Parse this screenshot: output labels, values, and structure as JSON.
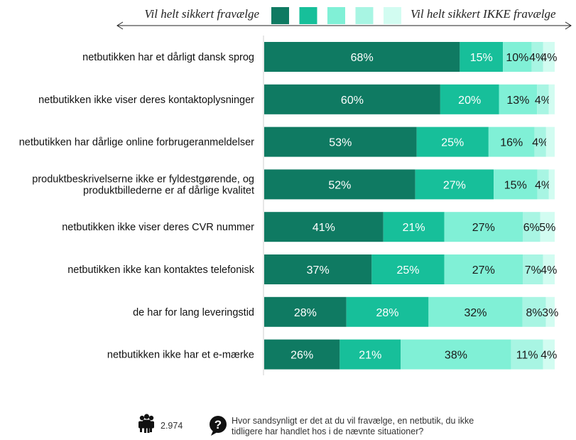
{
  "chart_data": {
    "type": "bar",
    "orientation": "horizontal",
    "stacked": true,
    "normalized": true,
    "scale_left_label": "Vil helt sikkert fravælge",
    "scale_right_label": "Vil helt sikkert IKKE fravælge",
    "segment_colors": [
      "#0f7a62",
      "#17bf9a",
      "#80f0d6",
      "#a8f5e3",
      "#d2fcf1"
    ],
    "categories": [
      "netbutikken har et dårligt dansk sprog",
      "netbutikken ikke viser deres kontaktoplysninger",
      "netbutikken har dårlige online forbrugeranmeldelser",
      "produktbeskrivelserne ikke er fyldestgørende, og produktbillederne er af dårlige kvalitet",
      "netbutikken ikke viser deres CVR nummer",
      "netbutikken ikke kan kontaktes telefonisk",
      "de har for lang leveringstid",
      "netbutikken ikke har et e-mærke"
    ],
    "category_lines": [
      [
        "netbutikken har et dårligt dansk sprog"
      ],
      [
        "netbutikken ikke viser deres kontaktoplysninger"
      ],
      [
        "netbutikken har dårlige online forbrugeranmeldelser"
      ],
      [
        "produktbeskrivelserne ikke er fyldestgørende, og",
        "produktbillederne er af dårlige kvalitet"
      ],
      [
        "netbutikken ikke viser deres CVR nummer"
      ],
      [
        "netbutikken ikke kan kontaktes telefonisk"
      ],
      [
        "de har for lang leveringstid"
      ],
      [
        "netbutikken ikke har et e-mærke"
      ]
    ],
    "rows": [
      [
        68,
        15,
        10,
        4,
        4
      ],
      [
        60,
        20,
        13,
        4,
        2
      ],
      [
        53,
        25,
        16,
        4,
        3
      ],
      [
        52,
        27,
        15,
        4,
        2
      ],
      [
        41,
        21,
        27,
        6,
        5
      ],
      [
        37,
        25,
        27,
        7,
        4
      ],
      [
        28,
        28,
        32,
        8,
        3
      ],
      [
        26,
        21,
        38,
        11,
        4
      ]
    ],
    "labels": [
      [
        "68%",
        "15%",
        "10%",
        "4%",
        "4%"
      ],
      [
        "60%",
        "20%",
        "13%",
        "4%",
        ""
      ],
      [
        "53%",
        "25%",
        "16%",
        "4%",
        ""
      ],
      [
        "52%",
        "27%",
        "15%",
        "4%",
        ""
      ],
      [
        "41%",
        "21%",
        "27%",
        "6%",
        "5%"
      ],
      [
        "37%",
        "25%",
        "27%",
        "7%",
        "4%"
      ],
      [
        "28%",
        "28%",
        "32%",
        "8%",
        "3%"
      ],
      [
        "26%",
        "21%",
        "38%",
        "11%",
        "4%"
      ]
    ],
    "respondents": "2.974",
    "question": "Hvor sandsynligt er det at du vil fravælge, en netbutik, du ikke tidligere har handlet hos i de nævnte situationer?",
    "question_lines": [
      "Hvor sandsynligt er det at du vil fravælge, en netbutik, du ikke",
      "tidligere har handlet hos i de nævnte situationer?"
    ],
    "icons": [
      "people-icon",
      "question-bubble-icon"
    ]
  }
}
